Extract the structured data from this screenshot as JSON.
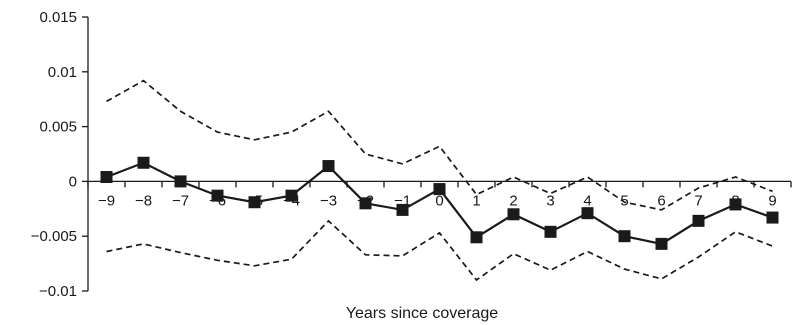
{
  "chart_data": {
    "type": "line",
    "title": "",
    "xlabel": "Years since coverage",
    "ylabel": "",
    "x": [
      -9,
      -8,
      -7,
      -6,
      -5,
      -4,
      -3,
      -2,
      -1,
      0,
      1,
      2,
      3,
      4,
      5,
      6,
      7,
      8,
      9
    ],
    "x_tick_labels": [
      "−9",
      "−8",
      "−7",
      "−6",
      "−5",
      "−4",
      "−3",
      "−2",
      "−1",
      "0",
      "1",
      "2",
      "3",
      "4",
      "5",
      "6",
      "7",
      "8",
      "9"
    ],
    "ylim": [
      -0.01,
      0.015
    ],
    "y_ticks": [
      -0.01,
      -0.005,
      0,
      0.005,
      0.01,
      0.015
    ],
    "y_tick_labels": [
      "−0.01",
      "−0.005",
      "0",
      "0.005",
      "0.01",
      "0.015"
    ],
    "grid": false,
    "legend": "none",
    "series": [
      {
        "role": "estimate",
        "style": "solid",
        "marker": "square",
        "color": "#1a1a1a",
        "values": [
          0.0004,
          0.0017,
          0.0,
          -0.0013,
          -0.0019,
          -0.0013,
          0.0014,
          -0.002,
          -0.0026,
          -0.0007,
          -0.0051,
          -0.003,
          -0.0046,
          -0.0029,
          -0.005,
          -0.0057,
          -0.0036,
          -0.0021,
          -0.0033
        ]
      },
      {
        "role": "upper-bound",
        "style": "dashed",
        "marker": "none",
        "color": "#1a1a1a",
        "values": [
          0.0073,
          0.0092,
          0.0064,
          0.0045,
          0.0038,
          0.0045,
          0.0064,
          0.0025,
          0.0016,
          0.0032,
          -0.0012,
          0.0004,
          -0.0011,
          0.0004,
          -0.0019,
          -0.0026,
          -0.0006,
          0.0004,
          -0.0009
        ]
      },
      {
        "role": "lower-bound",
        "style": "dashed",
        "marker": "none",
        "color": "#1a1a1a",
        "values": [
          -0.0064,
          -0.0057,
          -0.0065,
          -0.0072,
          -0.0077,
          -0.0071,
          -0.0036,
          -0.0067,
          -0.0068,
          -0.0047,
          -0.009,
          -0.0066,
          -0.0081,
          -0.0064,
          -0.008,
          -0.0089,
          -0.0069,
          -0.0046,
          -0.0059
        ]
      }
    ]
  }
}
